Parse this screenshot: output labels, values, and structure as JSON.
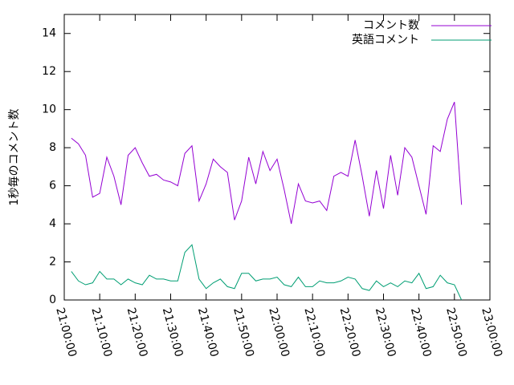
{
  "chart_data": {
    "type": "line",
    "y_label": "1秒毎のコメント数",
    "x": [
      "21:02:00",
      "21:04:00",
      "21:06:00",
      "21:08:00",
      "21:10:00",
      "21:12:00",
      "21:14:00",
      "21:16:00",
      "21:18:00",
      "21:20:00",
      "21:22:00",
      "21:24:00",
      "21:26:00",
      "21:28:00",
      "21:30:00",
      "21:32:00",
      "21:34:00",
      "21:36:00",
      "21:38:00",
      "21:40:00",
      "21:42:00",
      "21:44:00",
      "21:46:00",
      "21:48:00",
      "21:50:00",
      "21:52:00",
      "21:54:00",
      "21:56:00",
      "21:58:00",
      "22:00:00",
      "22:02:00",
      "22:04:00",
      "22:06:00",
      "22:08:00",
      "22:10:00",
      "22:12:00",
      "22:14:00",
      "22:16:00",
      "22:18:00",
      "22:20:00",
      "22:22:00",
      "22:24:00",
      "22:26:00",
      "22:28:00",
      "22:30:00",
      "22:32:00",
      "22:34:00",
      "22:36:00",
      "22:38:00",
      "22:40:00",
      "22:42:00",
      "22:44:00",
      "22:46:00",
      "22:48:00",
      "22:50:00",
      "22:52:00"
    ],
    "series": [
      {
        "name": "コメント数",
        "color": "#9400d3",
        "values": [
          8.5,
          8.2,
          7.6,
          5.4,
          5.6,
          7.5,
          6.5,
          5.0,
          7.6,
          8.0,
          7.2,
          6.5,
          6.6,
          6.3,
          6.2,
          6.0,
          7.7,
          8.1,
          5.2,
          6.1,
          7.4,
          7.0,
          6.7,
          4.2,
          5.2,
          7.5,
          6.1,
          7.8,
          6.8,
          7.4,
          5.8,
          4.0,
          6.1,
          5.2,
          5.1,
          5.2,
          4.7,
          6.5,
          6.7,
          6.5,
          8.4,
          6.5,
          4.4,
          6.8,
          4.8,
          7.6,
          5.5,
          8.0,
          7.5,
          6.0,
          4.5,
          8.1,
          7.8,
          9.5,
          10.4,
          5.0
        ]
      },
      {
        "name": "英語コメント",
        "color": "#009e73",
        "values": [
          1.5,
          1.0,
          0.8,
          0.9,
          1.5,
          1.1,
          1.1,
          0.8,
          1.1,
          0.9,
          0.8,
          1.3,
          1.1,
          1.1,
          1.0,
          1.0,
          2.5,
          2.9,
          1.1,
          0.6,
          0.9,
          1.1,
          0.7,
          0.6,
          1.4,
          1.4,
          1.0,
          1.1,
          1.1,
          1.2,
          0.8,
          0.7,
          1.2,
          0.7,
          0.7,
          1.0,
          0.9,
          0.9,
          1.0,
          1.2,
          1.1,
          0.6,
          0.5,
          1.0,
          0.7,
          0.9,
          0.7,
          1.0,
          0.9,
          1.4,
          0.6,
          0.7,
          1.3,
          0.9,
          0.8,
          0.0
        ]
      }
    ],
    "xlim": [
      "21:00:00",
      "23:00:00"
    ],
    "xticks": [
      "21:00:00",
      "21:10:00",
      "21:20:00",
      "21:30:00",
      "21:40:00",
      "21:50:00",
      "22:00:00",
      "22:10:00",
      "22:20:00",
      "22:30:00",
      "22:40:00",
      "22:50:00",
      "23:00:00"
    ],
    "ylim": [
      0,
      15
    ],
    "yticks": [
      0,
      2,
      4,
      6,
      8,
      10,
      12,
      14
    ],
    "grid": false,
    "legend": "top-right"
  }
}
